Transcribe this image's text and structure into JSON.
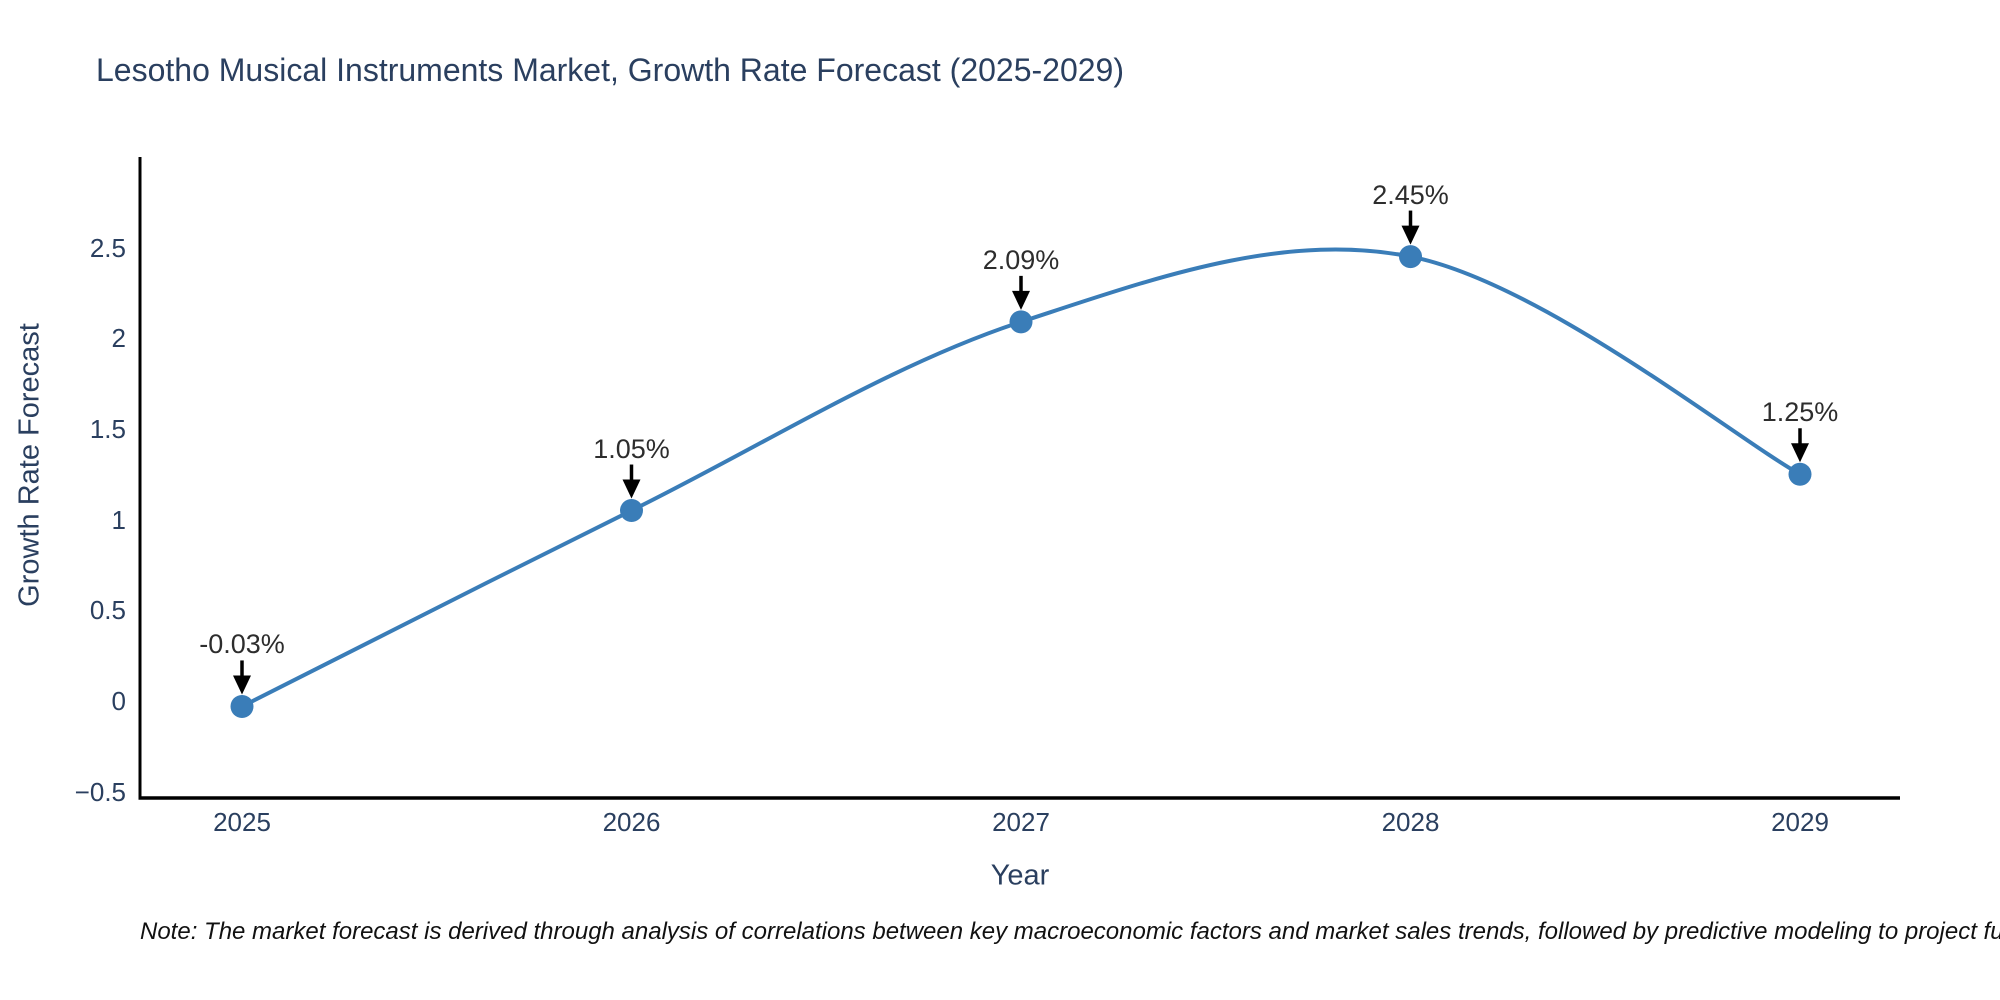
{
  "chart_data": {
    "type": "line",
    "line_shape": "spline",
    "title": "Lesotho Musical Instruments Market, Growth Rate Forecast (2025-2029)",
    "xlabel": "Year",
    "ylabel": "Growth Rate Forecast",
    "categories": [
      "2025",
      "2026",
      "2027",
      "2028",
      "2029"
    ],
    "values": [
      -0.03,
      1.05,
      2.09,
      2.45,
      1.25
    ],
    "point_labels": [
      "-0.03%",
      "1.05%",
      "2.09%",
      "2.45%",
      "1.25%"
    ],
    "ytick_values": [
      2.5,
      2,
      1.5,
      1,
      0.5,
      0,
      -0.5
    ],
    "ytick_labels": [
      "2.5",
      "2",
      "1.5",
      "1",
      "0.5",
      "0",
      "−0.5"
    ],
    "ylim": [
      -0.55,
      3.0
    ],
    "grid": false,
    "legend": false,
    "background_color": "#ffffff",
    "line_color": "#3a7db8",
    "marker_color": "#3a7db8",
    "axis_line_color": "#000000",
    "annotation_arrow_color": "#000000",
    "annotation_text_color": "#2d2d2d",
    "text_color": "#2a3f5f"
  },
  "note": {
    "text": "Note: The market forecast is derived through analysis of correlations between key macroeconomic factors and market sales trends, followed by predictive modeling to project future sal"
  }
}
